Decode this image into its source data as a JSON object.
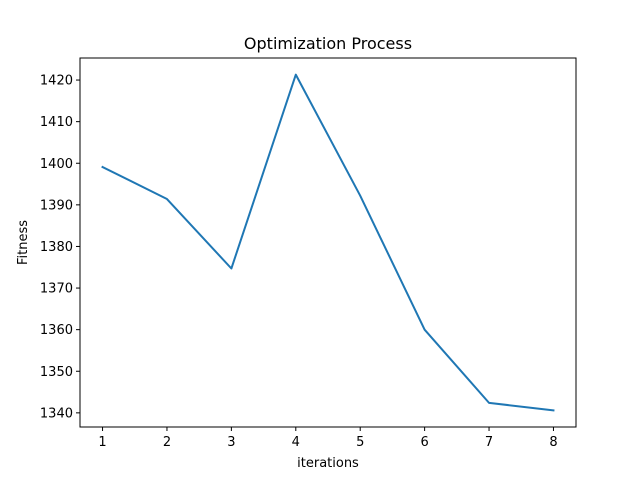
{
  "chart_data": {
    "type": "line",
    "title": "Optimization Process",
    "xlabel": "iterations",
    "ylabel": "Fitness",
    "x": [
      1,
      2,
      3,
      4,
      5,
      6,
      7,
      8
    ],
    "series": [
      {
        "values": [
          1399.1,
          1391.4,
          1374.7,
          1421.3,
          1392.2,
          1360.0,
          1342.4,
          1340.6
        ],
        "color": "#1f77b4"
      }
    ],
    "xticks": [
      1,
      2,
      3,
      4,
      5,
      6,
      7,
      8
    ],
    "yticks": [
      1340,
      1350,
      1360,
      1370,
      1380,
      1390,
      1400,
      1410,
      1420
    ],
    "xlim": [
      0.65,
      8.35
    ],
    "ylim": [
      1336.6,
      1425.3
    ],
    "grid": false,
    "legend": "none"
  }
}
